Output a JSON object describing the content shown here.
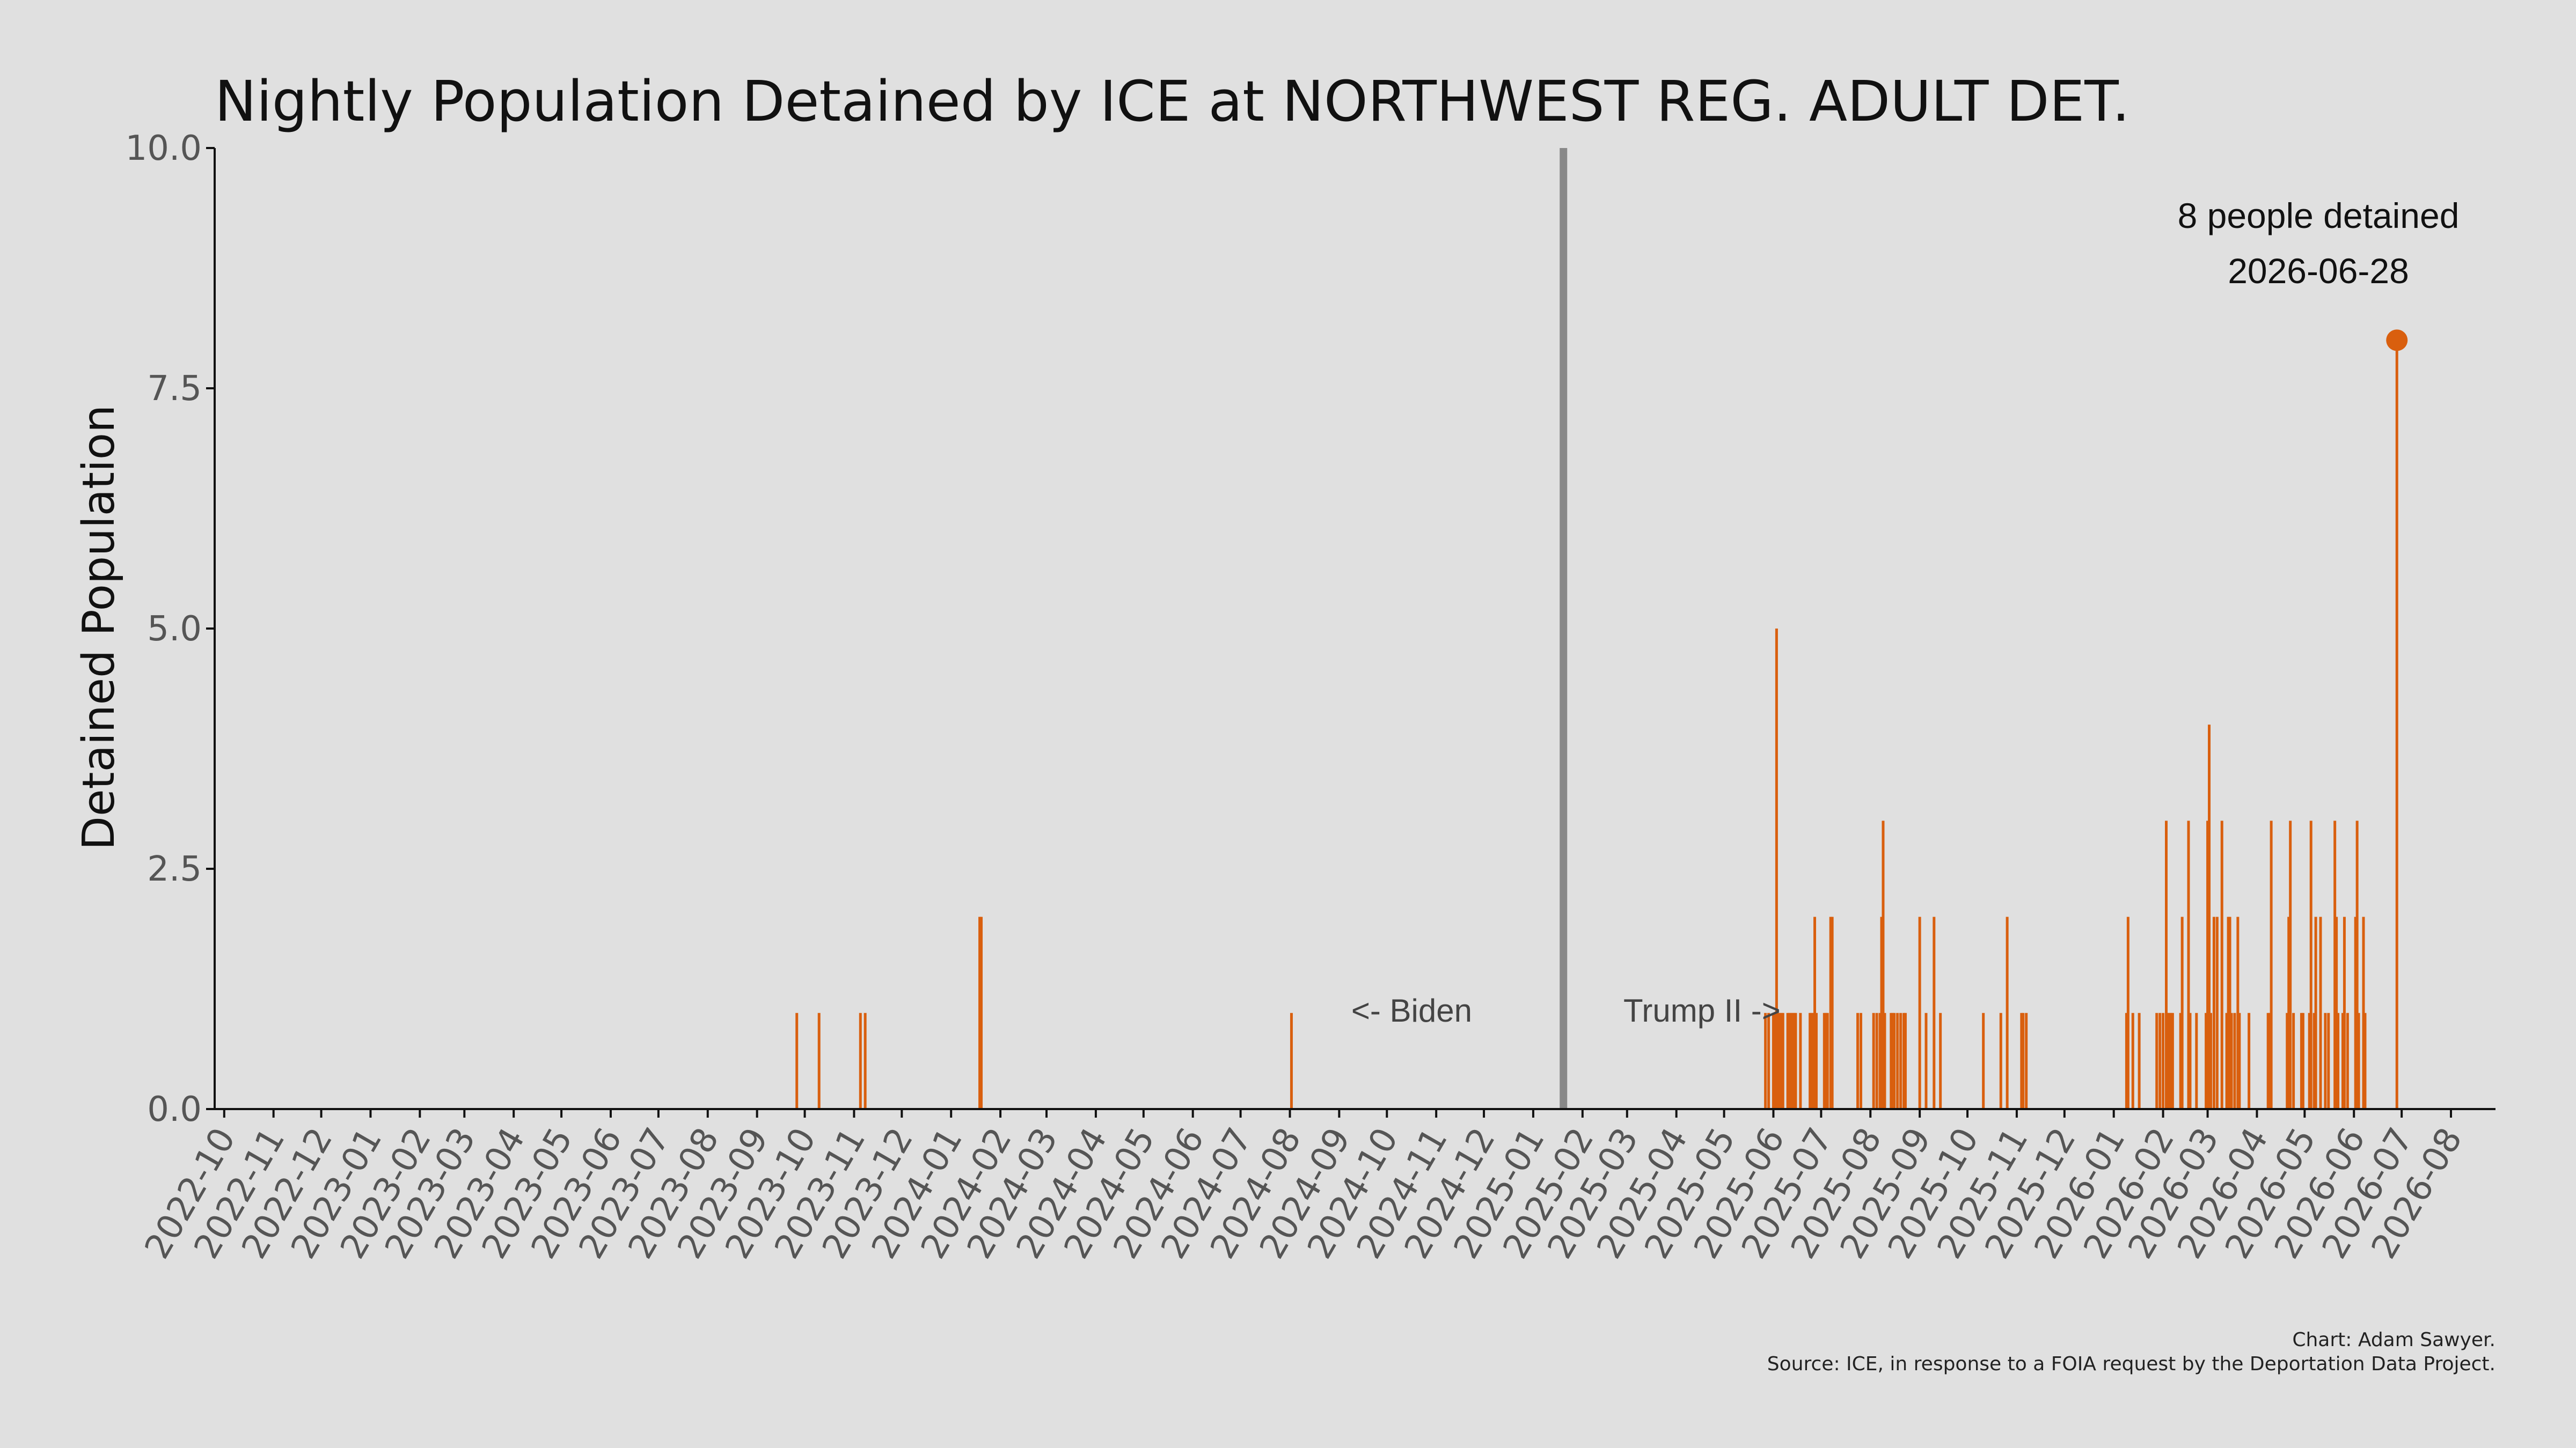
{
  "colors": {
    "background": "#e0e0e0",
    "bars": "#d95f0e",
    "divider": "#888888",
    "axis": "#111111"
  },
  "chart_data": {
    "type": "bar",
    "title": "Nightly Population Detained by ICE at NORTHWEST REG. ADULT DET.",
    "xlabel": "",
    "ylabel": "Detained Population",
    "xlim": [
      "2022-09-25",
      "2026-08-29"
    ],
    "ylim": [
      0,
      10
    ],
    "y_ticks": [
      "0.0",
      "2.5",
      "5.0",
      "7.5",
      "10.0"
    ],
    "x_ticks": [
      "2022-10",
      "2022-11",
      "2022-12",
      "2023-01",
      "2023-02",
      "2023-03",
      "2023-04",
      "2023-05",
      "2023-06",
      "2023-07",
      "2023-08",
      "2023-09",
      "2023-10",
      "2023-11",
      "2023-12",
      "2024-01",
      "2024-02",
      "2024-03",
      "2024-04",
      "2024-05",
      "2024-06",
      "2024-07",
      "2024-08",
      "2024-09",
      "2024-10",
      "2024-11",
      "2024-12",
      "2025-01",
      "2025-02",
      "2025-03",
      "2025-04",
      "2025-05",
      "2025-06",
      "2025-07",
      "2025-08",
      "2025-09",
      "2025-10",
      "2025-11",
      "2025-12",
      "2026-01",
      "2026-02",
      "2026-03",
      "2026-04",
      "2026-05",
      "2026-06",
      "2026-07",
      "2026-08"
    ],
    "grid": false,
    "divider_date": "2025-01-20",
    "annotations": {
      "left": "<- Biden",
      "right": "Trump II ->"
    },
    "peak": {
      "date": "2026-06-28",
      "value": 8,
      "label": "8 people detained",
      "date_label": "2026-06-28"
    },
    "points": [
      [
        "2023-09-26",
        1
      ],
      [
        "2023-10-10",
        1
      ],
      [
        "2023-11-05",
        1
      ],
      [
        "2023-11-08",
        1
      ],
      [
        "2024-01-19",
        2
      ],
      [
        "2024-01-20",
        2
      ],
      [
        "2024-08-02",
        1
      ],
      [
        "2025-05-27",
        1
      ],
      [
        "2025-05-29",
        1
      ],
      [
        "2025-06-01",
        1
      ],
      [
        "2025-06-02",
        1
      ],
      [
        "2025-06-03",
        5
      ],
      [
        "2025-06-04",
        1
      ],
      [
        "2025-06-05",
        1
      ],
      [
        "2025-06-06",
        1
      ],
      [
        "2025-06-07",
        1
      ],
      [
        "2025-06-10",
        1
      ],
      [
        "2025-06-11",
        1
      ],
      [
        "2025-06-12",
        1
      ],
      [
        "2025-06-13",
        1
      ],
      [
        "2025-06-14",
        1
      ],
      [
        "2025-06-15",
        1
      ],
      [
        "2025-06-18",
        1
      ],
      [
        "2025-06-24",
        1
      ],
      [
        "2025-06-25",
        1
      ],
      [
        "2025-06-26",
        1
      ],
      [
        "2025-06-27",
        2
      ],
      [
        "2025-06-28",
        1
      ],
      [
        "2025-07-03",
        1
      ],
      [
        "2025-07-04",
        1
      ],
      [
        "2025-07-05",
        1
      ],
      [
        "2025-07-07",
        2
      ],
      [
        "2025-07-08",
        2
      ],
      [
        "2025-07-24",
        1
      ],
      [
        "2025-07-26",
        1
      ],
      [
        "2025-08-03",
        1
      ],
      [
        "2025-08-05",
        1
      ],
      [
        "2025-08-07",
        1
      ],
      [
        "2025-08-08",
        2
      ],
      [
        "2025-08-09",
        3
      ],
      [
        "2025-08-10",
        1
      ],
      [
        "2025-08-14",
        1
      ],
      [
        "2025-08-15",
        1
      ],
      [
        "2025-08-16",
        1
      ],
      [
        "2025-08-18",
        1
      ],
      [
        "2025-08-20",
        1
      ],
      [
        "2025-08-22",
        1
      ],
      [
        "2025-08-23",
        1
      ],
      [
        "2025-09-01",
        2
      ],
      [
        "2025-09-05",
        1
      ],
      [
        "2025-09-10",
        2
      ],
      [
        "2025-09-14",
        1
      ],
      [
        "2025-10-11",
        1
      ],
      [
        "2025-10-22",
        1
      ],
      [
        "2025-10-26",
        2
      ],
      [
        "2025-11-04",
        1
      ],
      [
        "2025-11-05",
        1
      ],
      [
        "2025-11-07",
        1
      ],
      [
        "2026-01-09",
        1
      ],
      [
        "2026-01-10",
        2
      ],
      [
        "2026-01-13",
        1
      ],
      [
        "2026-01-17",
        1
      ],
      [
        "2026-01-28",
        1
      ],
      [
        "2026-01-30",
        1
      ],
      [
        "2026-02-01",
        1
      ],
      [
        "2026-02-03",
        3
      ],
      [
        "2026-02-04",
        1
      ],
      [
        "2026-02-05",
        1
      ],
      [
        "2026-02-06",
        1
      ],
      [
        "2026-02-07",
        1
      ],
      [
        "2026-02-12",
        1
      ],
      [
        "2026-02-13",
        2
      ],
      [
        "2026-02-17",
        3
      ],
      [
        "2026-02-18",
        1
      ],
      [
        "2026-02-22",
        1
      ],
      [
        "2026-02-28",
        1
      ],
      [
        "2026-03-01",
        3
      ],
      [
        "2026-03-02",
        4
      ],
      [
        "2026-03-03",
        1
      ],
      [
        "2026-03-05",
        2
      ],
      [
        "2026-03-07",
        2
      ],
      [
        "2026-03-10",
        3
      ],
      [
        "2026-03-13",
        1
      ],
      [
        "2026-03-14",
        2
      ],
      [
        "2026-03-15",
        2
      ],
      [
        "2026-03-16",
        1
      ],
      [
        "2026-03-18",
        1
      ],
      [
        "2026-03-20",
        2
      ],
      [
        "2026-03-21",
        1
      ],
      [
        "2026-03-27",
        1
      ],
      [
        "2026-04-08",
        1
      ],
      [
        "2026-04-09",
        1
      ],
      [
        "2026-04-10",
        3
      ],
      [
        "2026-04-20",
        1
      ],
      [
        "2026-04-21",
        2
      ],
      [
        "2026-04-22",
        3
      ],
      [
        "2026-04-24",
        1
      ],
      [
        "2026-04-29",
        1
      ],
      [
        "2026-04-30",
        1
      ],
      [
        "2026-05-04",
        1
      ],
      [
        "2026-05-05",
        3
      ],
      [
        "2026-05-07",
        1
      ],
      [
        "2026-05-08",
        2
      ],
      [
        "2026-05-11",
        2
      ],
      [
        "2026-05-14",
        1
      ],
      [
        "2026-05-16",
        1
      ],
      [
        "2026-05-20",
        3
      ],
      [
        "2026-05-21",
        2
      ],
      [
        "2026-05-22",
        1
      ],
      [
        "2026-05-25",
        1
      ],
      [
        "2026-05-26",
        2
      ],
      [
        "2026-05-28",
        1
      ],
      [
        "2026-06-02",
        2
      ],
      [
        "2026-06-03",
        3
      ],
      [
        "2026-06-04",
        1
      ],
      [
        "2026-06-07",
        2
      ],
      [
        "2026-06-08",
        1
      ],
      [
        "2026-06-28",
        8
      ]
    ]
  },
  "credit": {
    "line1": "Chart: Adam Sawyer.",
    "line2": "Source: ICE, in response to a FOIA request by the Deportation Data Project."
  }
}
